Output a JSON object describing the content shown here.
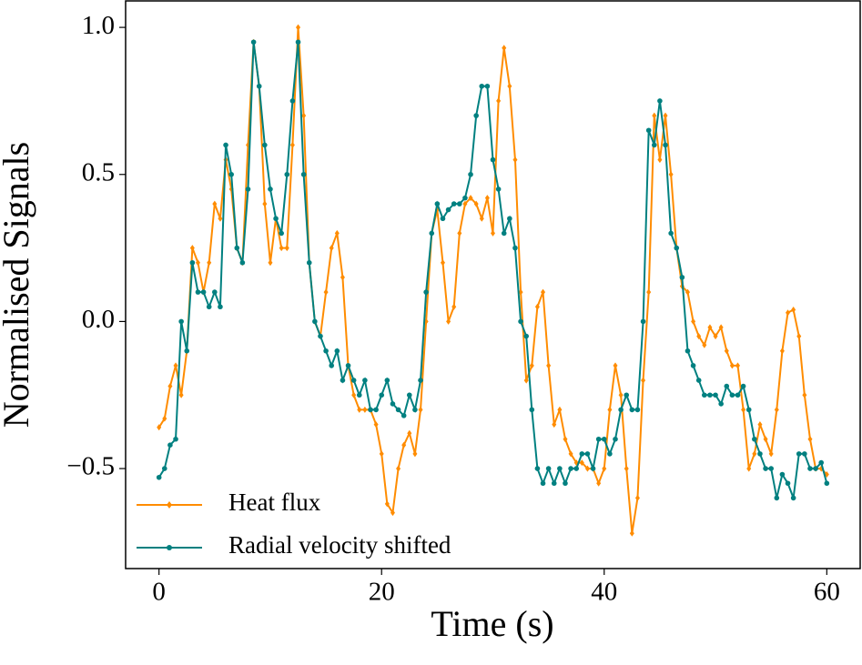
{
  "chart_data": {
    "type": "line",
    "xlabel": "Time (s)",
    "ylabel": "Normalised Signals",
    "x": [
      0,
      0.5,
      1,
      1.5,
      2,
      2.5,
      3,
      3.5,
      4,
      4.5,
      5,
      5.5,
      6,
      6.5,
      7,
      7.5,
      8,
      8.5,
      9,
      9.5,
      10,
      10.5,
      11,
      11.5,
      12,
      12.5,
      13,
      13.5,
      14,
      14.5,
      15,
      15.5,
      16,
      16.5,
      17,
      17.5,
      18,
      18.5,
      19,
      19.5,
      20,
      20.5,
      21,
      21.5,
      22,
      22.5,
      23,
      23.5,
      24,
      24.5,
      25,
      25.5,
      26,
      26.5,
      27,
      27.5,
      28,
      28.5,
      29,
      29.5,
      30,
      30.5,
      31,
      31.5,
      32,
      32.5,
      33,
      33.5,
      34,
      34.5,
      35,
      35.5,
      36,
      36.5,
      37,
      37.5,
      38,
      38.5,
      39,
      39.5,
      40,
      40.5,
      41,
      41.5,
      42,
      42.5,
      43,
      43.5,
      44,
      44.5,
      45,
      45.5,
      46,
      46.5,
      47,
      47.5,
      48,
      48.5,
      49,
      49.5,
      50,
      50.5,
      51,
      51.5,
      52,
      52.5,
      53,
      53.5,
      54,
      54.5,
      55,
      55.5,
      56,
      56.5,
      57,
      57.5,
      58,
      58.5,
      59,
      59.5,
      60
    ],
    "series": [
      {
        "name": "Heat flux",
        "color": "#ff8c00",
        "marker": "diamond",
        "values": [
          -0.36,
          -0.33,
          -0.22,
          -0.15,
          -0.25,
          -0.1,
          0.25,
          0.2,
          0.1,
          0.2,
          0.4,
          0.35,
          0.55,
          0.45,
          0.25,
          0.2,
          0.6,
          0.95,
          0.8,
          0.4,
          0.2,
          0.35,
          0.25,
          0.25,
          0.6,
          1.0,
          0.7,
          0.2,
          0.0,
          -0.05,
          0.1,
          0.25,
          0.3,
          0.15,
          -0.15,
          -0.25,
          -0.3,
          -0.3,
          -0.3,
          -0.35,
          -0.45,
          -0.62,
          -0.65,
          -0.5,
          -0.42,
          -0.38,
          -0.45,
          -0.3,
          0.0,
          0.3,
          0.38,
          0.2,
          0.0,
          0.05,
          0.3,
          0.4,
          0.42,
          0.4,
          0.35,
          0.42,
          0.3,
          0.75,
          0.93,
          0.8,
          0.55,
          0.1,
          -0.2,
          -0.15,
          0.05,
          0.1,
          -0.15,
          -0.35,
          -0.3,
          -0.4,
          -0.45,
          -0.48,
          -0.48,
          -0.5,
          -0.5,
          -0.55,
          -0.5,
          -0.3,
          -0.15,
          -0.25,
          -0.5,
          -0.72,
          -0.6,
          -0.2,
          0.1,
          0.7,
          0.55,
          0.7,
          0.5,
          0.25,
          0.12,
          0.1,
          0.0,
          -0.05,
          -0.08,
          -0.02,
          -0.05,
          -0.02,
          -0.1,
          -0.15,
          -0.15,
          -0.3,
          -0.5,
          -0.45,
          -0.35,
          -0.4,
          -0.45,
          -0.3,
          -0.1,
          0.03,
          0.04,
          -0.05,
          -0.25,
          -0.4,
          -0.5,
          -0.5,
          -0.52
        ]
      },
      {
        "name": "Radial velocity shifted",
        "color": "#008080",
        "marker": "circle",
        "values": [
          -0.53,
          -0.5,
          -0.42,
          -0.4,
          0.0,
          -0.1,
          0.2,
          0.1,
          0.1,
          0.05,
          0.1,
          0.05,
          0.6,
          0.5,
          0.25,
          0.2,
          0.45,
          0.95,
          0.8,
          0.6,
          0.45,
          0.35,
          0.3,
          0.5,
          0.75,
          0.95,
          0.5,
          0.2,
          0.0,
          -0.05,
          -0.1,
          -0.15,
          -0.1,
          -0.2,
          -0.15,
          -0.2,
          -0.25,
          -0.2,
          -0.3,
          -0.3,
          -0.25,
          -0.2,
          -0.28,
          -0.3,
          -0.32,
          -0.25,
          -0.3,
          -0.2,
          0.1,
          0.3,
          0.4,
          0.35,
          0.38,
          0.4,
          0.4,
          0.42,
          0.5,
          0.7,
          0.8,
          0.8,
          0.55,
          0.45,
          0.3,
          0.35,
          0.25,
          0.0,
          -0.05,
          -0.3,
          -0.5,
          -0.55,
          -0.5,
          -0.55,
          -0.5,
          -0.55,
          -0.5,
          -0.5,
          -0.45,
          -0.45,
          -0.5,
          -0.4,
          -0.4,
          -0.45,
          -0.4,
          -0.3,
          -0.25,
          -0.3,
          -0.3,
          0.0,
          0.65,
          0.6,
          0.75,
          0.6,
          0.3,
          0.25,
          0.15,
          -0.1,
          -0.15,
          -0.2,
          -0.25,
          -0.25,
          -0.25,
          -0.28,
          -0.22,
          -0.25,
          -0.25,
          -0.22,
          -0.3,
          -0.4,
          -0.45,
          -0.5,
          -0.5,
          -0.6,
          -0.52,
          -0.55,
          -0.6,
          -0.45,
          -0.45,
          -0.5,
          -0.5,
          -0.48,
          -0.55
        ]
      }
    ],
    "xlim": [
      -3.0,
      63.0
    ],
    "ylim": [
      -0.84,
      1.09
    ],
    "xticks": [
      0,
      20,
      40,
      60
    ],
    "yticks": [
      {
        "value": -0.5,
        "label": "−0.5"
      },
      {
        "value": 0.0,
        "label": "0.0"
      },
      {
        "value": 0.5,
        "label": "0.5"
      },
      {
        "value": 1.0,
        "label": "1.0"
      }
    ],
    "legend": "lower left",
    "grid": false
  }
}
